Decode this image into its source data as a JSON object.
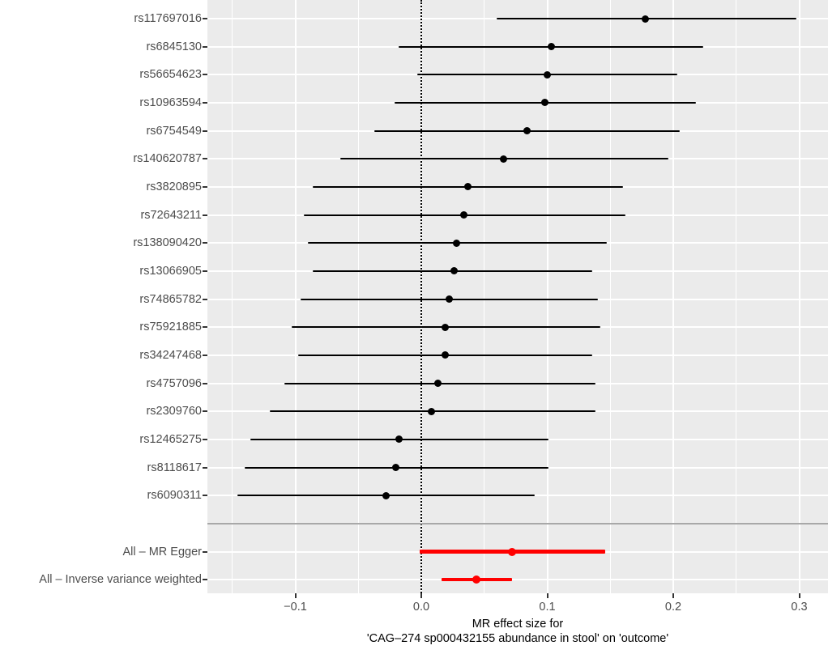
{
  "chart_data": {
    "type": "forest",
    "xlabel_line1": "MR effect size for",
    "xlabel_line2": "'CAG–274 sp000432155 abundance in stool' on 'outcome'",
    "x_axis": {
      "xlim": [
        -0.17,
        0.323
      ],
      "major_ticks": [
        {
          "label": "−0.1",
          "value": -0.1
        },
        {
          "label": "0.0",
          "value": 0.0
        },
        {
          "label": "0.1",
          "value": 0.1
        },
        {
          "label": "0.2",
          "value": 0.2
        },
        {
          "label": "0.3",
          "value": 0.3
        }
      ],
      "minor_gridlines": [
        -0.15,
        -0.05,
        0.05,
        0.15,
        0.25
      ],
      "zero_reference_line": 0.0,
      "grid": "on"
    },
    "snps": [
      {
        "label": "rs117697016",
        "est": 0.178,
        "lo": 0.06,
        "hi": 0.298
      },
      {
        "label": "rs6845130",
        "est": 0.103,
        "lo": -0.018,
        "hi": 0.224
      },
      {
        "label": "rs56654623",
        "est": 0.1,
        "lo": -0.003,
        "hi": 0.203
      },
      {
        "label": "rs10963594",
        "est": 0.098,
        "lo": -0.021,
        "hi": 0.218
      },
      {
        "label": "rs6754549",
        "est": 0.084,
        "lo": -0.037,
        "hi": 0.205
      },
      {
        "label": "rs140620787",
        "est": 0.065,
        "lo": -0.064,
        "hi": 0.196
      },
      {
        "label": "rs3820895",
        "est": 0.037,
        "lo": -0.086,
        "hi": 0.16
      },
      {
        "label": "rs72643211",
        "est": 0.034,
        "lo": -0.093,
        "hi": 0.162
      },
      {
        "label": "rs138090420",
        "est": 0.028,
        "lo": -0.09,
        "hi": 0.147
      },
      {
        "label": "rs13066905",
        "est": 0.026,
        "lo": -0.086,
        "hi": 0.136
      },
      {
        "label": "rs74865782",
        "est": 0.022,
        "lo": -0.096,
        "hi": 0.14
      },
      {
        "label": "rs75921885",
        "est": 0.019,
        "lo": -0.103,
        "hi": 0.142
      },
      {
        "label": "rs34247468",
        "est": 0.019,
        "lo": -0.098,
        "hi": 0.136
      },
      {
        "label": "rs4757096",
        "est": 0.013,
        "lo": -0.109,
        "hi": 0.138
      },
      {
        "label": "rs2309760",
        "est": 0.008,
        "lo": -0.12,
        "hi": 0.138
      },
      {
        "label": "rs12465275",
        "est": -0.018,
        "lo": -0.136,
        "hi": 0.101
      },
      {
        "label": "rs8118617",
        "est": -0.02,
        "lo": -0.14,
        "hi": 0.101
      },
      {
        "label": "rs6090311",
        "est": -0.028,
        "lo": -0.146,
        "hi": 0.09
      }
    ],
    "summary": [
      {
        "label": "All – MR Egger",
        "est": 0.072,
        "lo": -0.001,
        "hi": 0.146
      },
      {
        "label": "All – Inverse variance weighted",
        "est": 0.044,
        "lo": 0.016,
        "hi": 0.072
      }
    ],
    "colors": {
      "snp_color": "#000000",
      "summary_color": "#FF0000",
      "panel_bg": "#EBEBEB",
      "gridline": "#FFFFFF",
      "separator": "#A8A8A8",
      "axis_text": "#4D4D4D",
      "axis_title": "#000000",
      "tick_mark": "#333333"
    }
  }
}
